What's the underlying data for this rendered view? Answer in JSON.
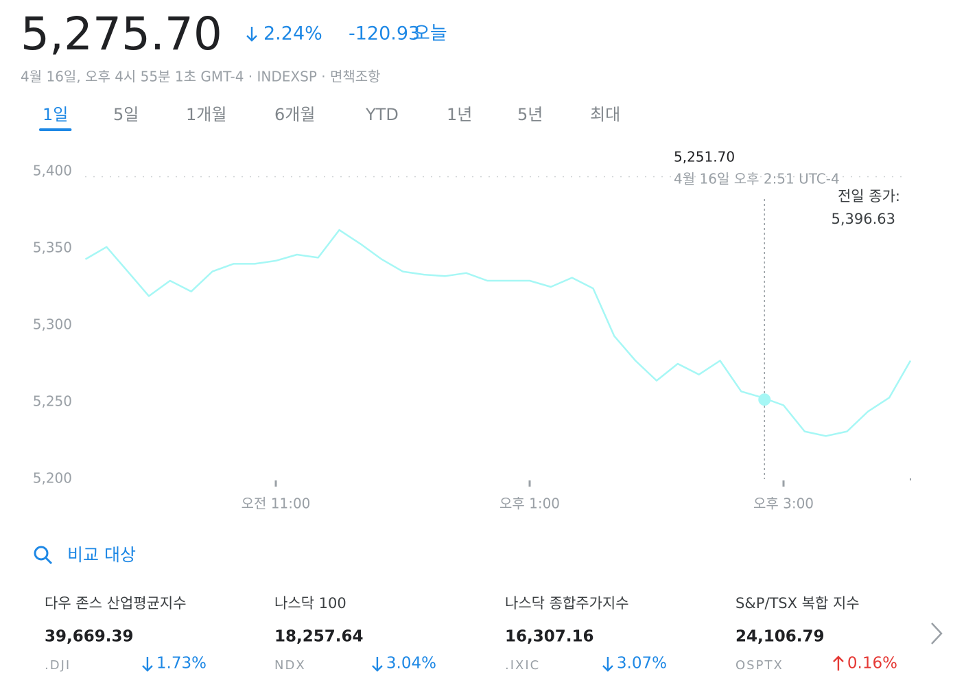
{
  "header": {
    "price": "5,275.70",
    "change_pct": "2.24%",
    "change_direction": "down",
    "change": "-120.93",
    "period": "오늘",
    "meta": "4월 16일, 오후 4시 55분 1초 GMT-4 · INDEXSP · 면책조항"
  },
  "tabs": {
    "items": [
      "1일",
      "5일",
      "1개월",
      "6개월",
      "YTD",
      "1년",
      "5년",
      "최대"
    ],
    "active": 0
  },
  "chart_data": {
    "type": "line",
    "color": "#a6f7f5",
    "x": [
      "09:30",
      "09:40",
      "09:50",
      "10:00",
      "10:10",
      "10:20",
      "10:30",
      "10:40",
      "10:50",
      "11:00",
      "11:10",
      "11:20",
      "11:30",
      "11:40",
      "11:50",
      "12:00",
      "12:10",
      "12:20",
      "12:30",
      "12:40",
      "12:50",
      "13:00",
      "13:10",
      "13:20",
      "13:30",
      "13:40",
      "13:50",
      "14:00",
      "14:10",
      "14:20",
      "14:30",
      "14:40",
      "14:50",
      "15:00",
      "15:10",
      "15:20",
      "15:30",
      "15:40",
      "15:50",
      "16:00"
    ],
    "values": [
      5343,
      5351,
      5335,
      5319,
      5329,
      5322,
      5335,
      5340,
      5340,
      5342,
      5346,
      5344,
      5362,
      5353,
      5343,
      5335,
      5333,
      5332,
      5334,
      5329,
      5329,
      5329,
      5325,
      5331,
      5324,
      5293,
      5277,
      5264,
      5275,
      5268,
      5277,
      5257,
      5253,
      5248,
      5231,
      5228,
      5231,
      5244,
      5253,
      5277
    ],
    "xlim": [
      "09:30",
      "16:00"
    ],
    "xticks": [
      {
        "value": "11:00",
        "label": "오전 11:00"
      },
      {
        "value": "13:00",
        "label": "오후 1:00"
      },
      {
        "value": "15:00",
        "label": "오후 3:00"
      }
    ],
    "ylim": [
      5200,
      5400
    ],
    "yticks": [
      {
        "value": 5200,
        "label": "5,200"
      },
      {
        "value": 5250,
        "label": "5,250"
      },
      {
        "value": 5300,
        "label": "5,300"
      },
      {
        "value": 5350,
        "label": "5,350"
      },
      {
        "value": 5400,
        "label": "5,400"
      }
    ],
    "previous_close": {
      "label": "전일 종가:",
      "value": 5396.63,
      "value_label": "5,396.63"
    },
    "tooltip": {
      "x": "14:51",
      "value": 5251.7,
      "value_label": "5,251.70",
      "time": "4월 16일 오후 2:51 UTC-4"
    }
  },
  "compare": {
    "label": "비교 대상",
    "items": [
      {
        "name": "다우 존스 산업평균지수",
        "price": "39,669.39",
        "symbol": ".DJI",
        "change": "1.73%",
        "direction": "down"
      },
      {
        "name": "나스닥 100",
        "price": "18,257.64",
        "symbol": "NDX",
        "change": "3.04%",
        "direction": "down"
      },
      {
        "name": "나스닥 종합주가지수",
        "price": "16,307.16",
        "symbol": ".IXIC",
        "change": "3.07%",
        "direction": "down"
      },
      {
        "name": "S&P/TSX 복합 지수",
        "price": "24,106.79",
        "symbol": "OSPTX",
        "change": "0.16%",
        "direction": "up"
      }
    ]
  }
}
